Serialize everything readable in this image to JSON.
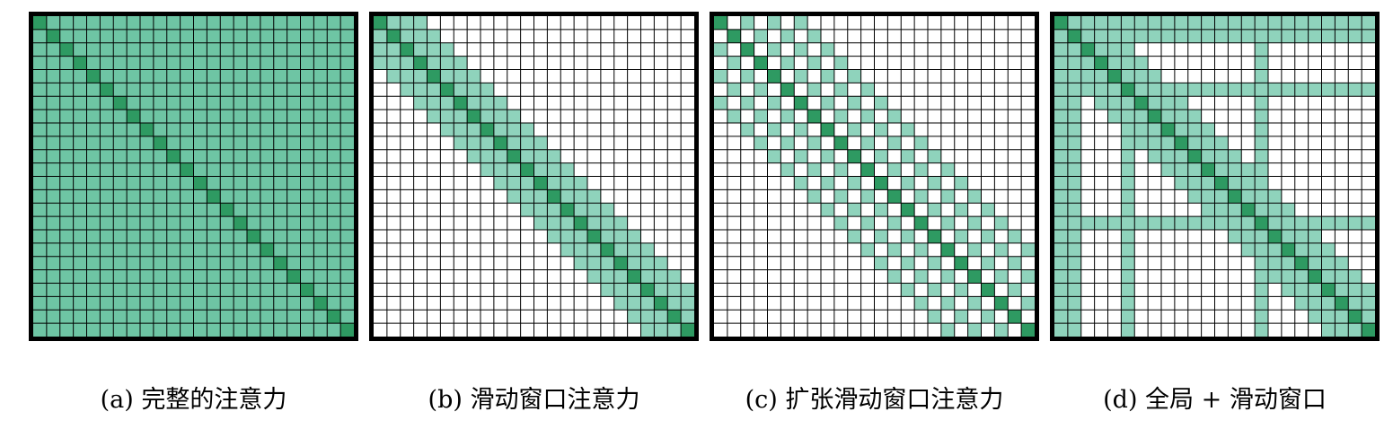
{
  "grid_size": 24,
  "colors": {
    "diagonal": "#2e9a62",
    "attended": "#6ec5a4",
    "band": "#8fd3bc",
    "empty": "#ffffff",
    "line": "#000000"
  },
  "panels": [
    {
      "id": "a",
      "pattern": "full",
      "caption": "(a) 完整的注意力"
    },
    {
      "id": "b",
      "pattern": "sliding",
      "window_half_width": 3,
      "caption": "(b) 滑动窗口注意力"
    },
    {
      "id": "c",
      "pattern": "dilated",
      "window_half_width": 6,
      "dilation": 2,
      "caption": "(c) 扩张滑动窗口注意力"
    },
    {
      "id": "d",
      "pattern": "global_sliding",
      "window_half_width": 3,
      "global_tokens": [
        0,
        1,
        5,
        15
      ],
      "caption": "(d) 全局 + 滑动窗口"
    }
  ]
}
